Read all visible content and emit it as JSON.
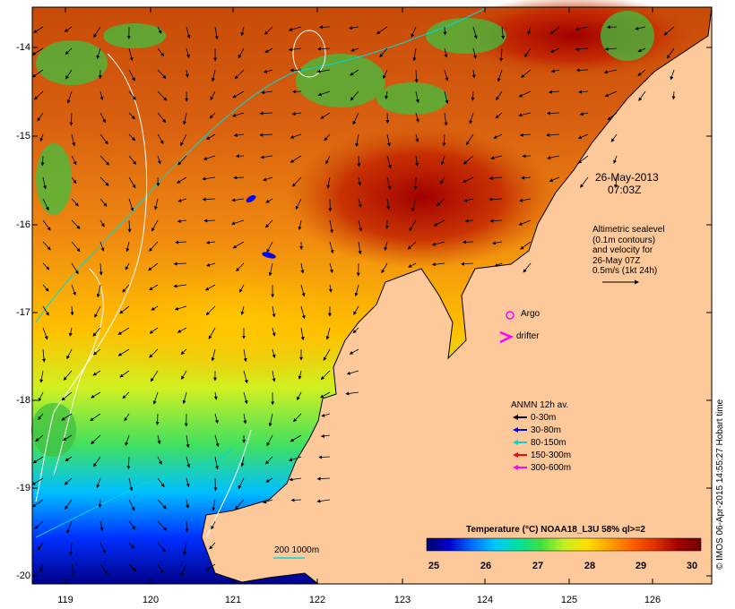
{
  "map": {
    "date_label": "26-May-2013",
    "time_label": "07:03Z",
    "altimetry_lines": [
      "Altimetric sealevel",
      "(0.1m contours)",
      "and velocity for",
      "26-May 07Z",
      "0.5m/s (1kt 24h)"
    ],
    "argo_label": "Argo",
    "drifter_label": "drifter",
    "isobath_label": "200  1000m",
    "lat_ticks": [
      "-14",
      "-15",
      "-16",
      "-17",
      "-18",
      "-19",
      "-20"
    ],
    "lon_ticks": [
      "119",
      "120",
      "121",
      "122",
      "123",
      "124",
      "125",
      "126"
    ]
  },
  "legend": {
    "title": "ANMN 12h av.",
    "items": [
      {
        "label": "0-30m",
        "color": "#000000"
      },
      {
        "label": "30-80m",
        "color": "#0000ff"
      },
      {
        "label": "80-150m",
        "color": "#00d8d8"
      },
      {
        "label": "150-300m",
        "color": "#ff0000"
      },
      {
        "label": "300-600m",
        "color": "#ff00ff"
      }
    ]
  },
  "colorbar": {
    "title": "Temperature (°C) NOAA18_L3U 58% ql>=2",
    "ticks": [
      "25",
      "26",
      "27",
      "28",
      "29",
      "30"
    ],
    "colors": [
      "#000066",
      "#0000cc",
      "#0070ff",
      "#00c8ff",
      "#00e0a0",
      "#40e040",
      "#c0f020",
      "#ffe000",
      "#ffa000",
      "#ff6000",
      "#e03000",
      "#a00000",
      "#700000"
    ]
  },
  "credit": "© IMOS 06-Apr-2015 14:55:27 Hobart time",
  "colors": {
    "land": "#fdc89a",
    "argo": "#ff00ff",
    "contour": "#ffffff",
    "isobath": "#00d8d8"
  }
}
